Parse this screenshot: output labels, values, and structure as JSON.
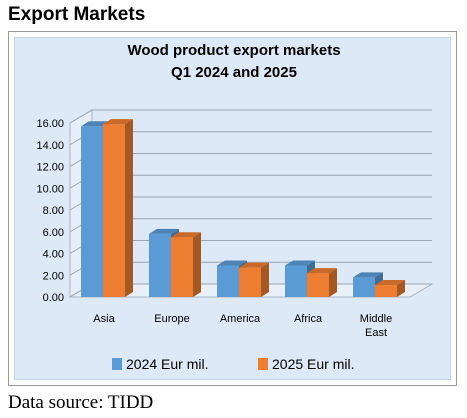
{
  "page": {
    "heading": "Export Markets",
    "source": "Data source: TIDD"
  },
  "colors": {
    "series_2024": "#5b9bd5",
    "series_2025": "#ed7d31",
    "plot_background": "#dde9f6",
    "grid": "#9aa6b2"
  },
  "chart_data": {
    "type": "bar",
    "title": "Wood product export markets",
    "subtitle": "Q1 2024 and 2025",
    "categories": [
      "Asia",
      "Europe",
      "America",
      "Africa",
      "Middle East"
    ],
    "category_lines": [
      [
        "Asia"
      ],
      [
        "Europe"
      ],
      [
        "America"
      ],
      [
        "Africa"
      ],
      [
        "Middle",
        "East"
      ]
    ],
    "series": [
      {
        "name": "2024 Eur mil.",
        "values": [
          15.7,
          5.8,
          2.9,
          2.9,
          1.8
        ]
      },
      {
        "name": "2025 Eur mil.",
        "values": [
          15.9,
          5.5,
          2.7,
          2.2,
          1.1
        ]
      }
    ],
    "yticks": [
      "0.00",
      "2.00",
      "4.00",
      "6.00",
      "8.00",
      "10.00",
      "12.00",
      "14.00",
      "16.00"
    ],
    "ylim": [
      0,
      16
    ],
    "grid": true,
    "legend_position": "bottom",
    "style": "3d-bar"
  }
}
